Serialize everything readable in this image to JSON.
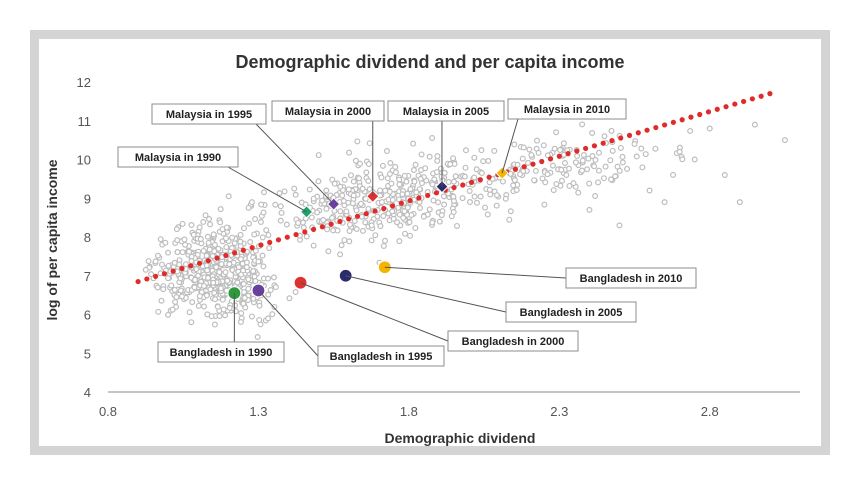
{
  "chart_data": {
    "type": "scatter",
    "title": "Demographic dividend and per capita income",
    "xlabel": "Demographic dividend",
    "ylabel": "log of per capita income",
    "xlim": [
      0.8,
      3.1
    ],
    "ylim": [
      4,
      12
    ],
    "xticks": [
      "0.8",
      "1.3",
      "1.8",
      "2.3",
      "2.8"
    ],
    "yticks": [
      "4",
      "5",
      "6",
      "7",
      "8",
      "9",
      "10",
      "11",
      "12"
    ],
    "grid": false,
    "legend": "none",
    "trendline": {
      "x": [
        0.9,
        3.0
      ],
      "y": [
        6.85,
        11.7
      ],
      "color": "#e02b2b",
      "style": "dotted"
    },
    "background_point_color": "#bdbdbd",
    "highlighted": [
      {
        "label": "Bangladesh in 1990",
        "x": 1.22,
        "y": 6.55,
        "color": "#2e9a3d"
      },
      {
        "label": "Bangladesh in 1995",
        "x": 1.3,
        "y": 6.62,
        "color": "#6a3fa0"
      },
      {
        "label": "Bangladesh in 2000",
        "x": 1.44,
        "y": 6.82,
        "color": "#e03131"
      },
      {
        "label": "Bangladesh in 2005",
        "x": 1.59,
        "y": 7.0,
        "color": "#2a2a6e"
      },
      {
        "label": "Bangladesh in 2010",
        "x": 1.72,
        "y": 7.22,
        "color": "#f4b400"
      },
      {
        "label": "Malaysia in 1990",
        "x": 1.46,
        "y": 8.65,
        "color": "#20a36a"
      },
      {
        "label": "Malaysia in 1995",
        "x": 1.55,
        "y": 8.85,
        "color": "#6a3fa0"
      },
      {
        "label": "Malaysia in 2000",
        "x": 1.68,
        "y": 9.05,
        "color": "#e03131"
      },
      {
        "label": "Malaysia in 2005",
        "x": 1.91,
        "y": 9.3,
        "color": "#2a2a6e"
      },
      {
        "label": "Malaysia in 2010",
        "x": 2.11,
        "y": 9.65,
        "color": "#f4b400"
      }
    ]
  }
}
